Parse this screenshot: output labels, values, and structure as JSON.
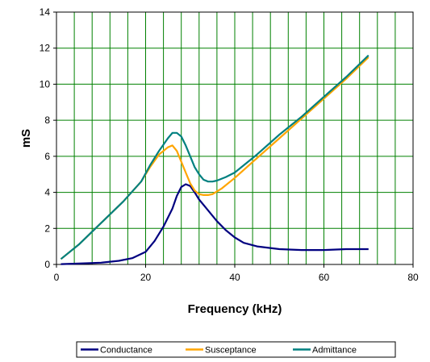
{
  "chart_data": {
    "type": "line",
    "title": "",
    "xlabel": "Frequency (kHz)",
    "ylabel": "mS",
    "xlim": [
      0,
      80
    ],
    "ylim": [
      0,
      14
    ],
    "x_ticks": [
      0,
      20,
      40,
      60,
      80
    ],
    "y_ticks": [
      0,
      2,
      4,
      6,
      8,
      10,
      12,
      14
    ],
    "x_tick_labels": [
      "0",
      "20",
      "40",
      "60",
      "80"
    ],
    "y_tick_labels": [
      "0",
      "2",
      "4",
      "6",
      "8",
      "10",
      "12",
      "14"
    ],
    "grid": {
      "major_x_step": 4,
      "major_y_step": 2
    },
    "legend_position": "bottom",
    "series": [
      {
        "name": "Conductance",
        "color": "#000080",
        "points": [
          [
            1,
            0.02
          ],
          [
            5,
            0.05
          ],
          [
            10,
            0.1
          ],
          [
            14,
            0.2
          ],
          [
            17,
            0.35
          ],
          [
            20,
            0.7
          ],
          [
            22,
            1.3
          ],
          [
            24,
            2.1
          ],
          [
            26,
            3.1
          ],
          [
            27,
            3.8
          ],
          [
            28,
            4.3
          ],
          [
            29,
            4.45
          ],
          [
            30,
            4.35
          ],
          [
            31,
            4.0
          ],
          [
            32,
            3.6
          ],
          [
            34,
            3.0
          ],
          [
            36,
            2.4
          ],
          [
            38,
            1.9
          ],
          [
            40,
            1.5
          ],
          [
            42,
            1.2
          ],
          [
            45,
            1.0
          ],
          [
            50,
            0.85
          ],
          [
            55,
            0.8
          ],
          [
            60,
            0.8
          ],
          [
            65,
            0.85
          ],
          [
            70,
            0.85
          ]
        ]
      },
      {
        "name": "Susceptance",
        "color": "#FFA500",
        "points": [
          [
            1,
            0.3
          ],
          [
            5,
            1.1
          ],
          [
            10,
            2.3
          ],
          [
            15,
            3.5
          ],
          [
            19,
            4.6
          ],
          [
            21,
            5.4
          ],
          [
            23,
            6.1
          ],
          [
            25,
            6.5
          ],
          [
            26,
            6.6
          ],
          [
            27,
            6.3
          ],
          [
            28,
            5.7
          ],
          [
            29,
            5.1
          ],
          [
            30,
            4.5
          ],
          [
            31,
            4.1
          ],
          [
            32,
            3.9
          ],
          [
            33,
            3.85
          ],
          [
            34,
            3.85
          ],
          [
            35,
            3.9
          ],
          [
            37,
            4.2
          ],
          [
            40,
            4.8
          ],
          [
            45,
            5.9
          ],
          [
            50,
            7.0
          ],
          [
            55,
            8.1
          ],
          [
            60,
            9.2
          ],
          [
            65,
            10.3
          ],
          [
            70,
            11.5
          ]
        ]
      },
      {
        "name": "Admittance",
        "color": "#008080",
        "points": [
          [
            1,
            0.3
          ],
          [
            5,
            1.1
          ],
          [
            10,
            2.3
          ],
          [
            15,
            3.5
          ],
          [
            19,
            4.6
          ],
          [
            21,
            5.5
          ],
          [
            23,
            6.3
          ],
          [
            25,
            7.0
          ],
          [
            26,
            7.3
          ],
          [
            27,
            7.3
          ],
          [
            28,
            7.1
          ],
          [
            29,
            6.6
          ],
          [
            30,
            6.0
          ],
          [
            31,
            5.4
          ],
          [
            32,
            5.0
          ],
          [
            33,
            4.7
          ],
          [
            34,
            4.6
          ],
          [
            35,
            4.6
          ],
          [
            36,
            4.65
          ],
          [
            38,
            4.85
          ],
          [
            40,
            5.1
          ],
          [
            45,
            6.1
          ],
          [
            50,
            7.2
          ],
          [
            55,
            8.2
          ],
          [
            60,
            9.3
          ],
          [
            65,
            10.4
          ],
          [
            70,
            11.6
          ]
        ]
      }
    ]
  }
}
